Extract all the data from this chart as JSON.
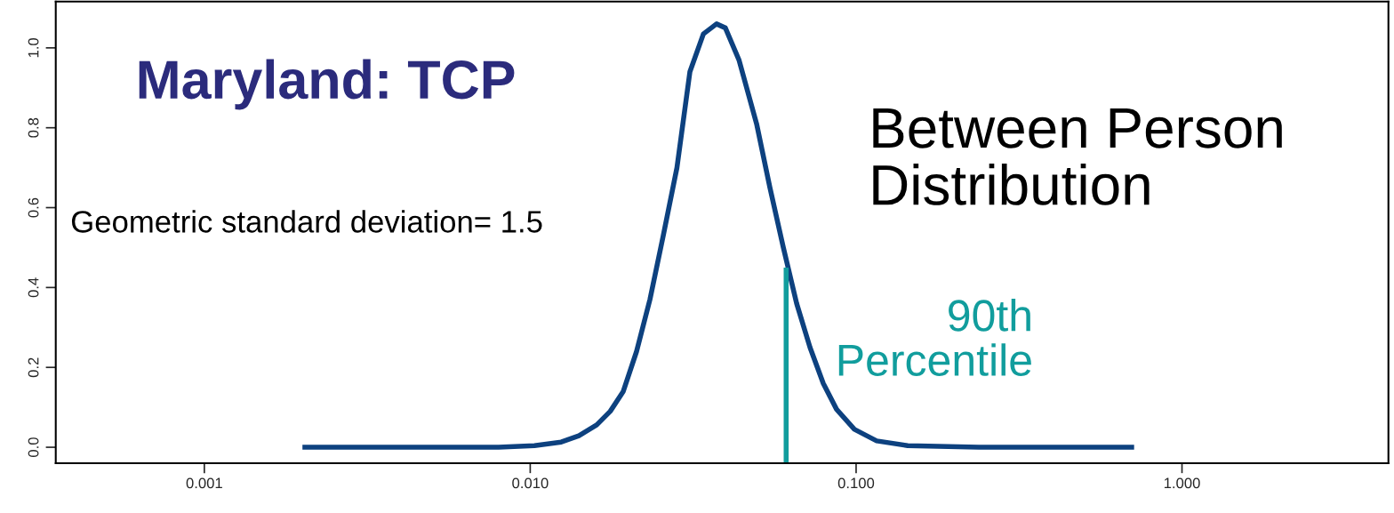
{
  "chart_data": {
    "type": "line",
    "title": "Maryland: TCP",
    "log": "x",
    "xlim": [
      0.00035,
      4.3
    ],
    "ylim": [
      -0.04,
      1.116
    ],
    "xticks": [
      {
        "value": 0.001,
        "label": "0.001"
      },
      {
        "value": 0.01,
        "label": "0.010"
      },
      {
        "value": 0.1,
        "label": "0.100"
      },
      {
        "value": 1,
        "label": "1.000"
      }
    ],
    "yticks": [
      {
        "value": 0,
        "label": "0.0"
      },
      {
        "value": 0.2,
        "label": "0.2"
      },
      {
        "value": 0.4,
        "label": "0.4"
      },
      {
        "value": 0.6,
        "label": "0.6"
      },
      {
        "value": 0.8,
        "label": "0.8"
      },
      {
        "value": 1,
        "label": "1.0"
      }
    ],
    "grid": false,
    "marker": "none",
    "line_style": "solid",
    "series": [
      {
        "color": "#0d417f",
        "x": [
          0.002,
          0.008,
          0.0103,
          0.01245,
          0.0141,
          0.016,
          0.0176,
          0.0193,
          0.0212,
          0.0233,
          0.0256,
          0.0282,
          0.0309,
          0.034,
          0.0373,
          0.0397,
          0.0437,
          0.0495,
          0.0544,
          0.0598,
          0.0657,
          0.0722,
          0.0793,
          0.0871,
          0.0988,
          0.1156,
          0.144,
          0.238,
          0.713
        ],
        "values": [
          0,
          0,
          0.004,
          0.013,
          0.029,
          0.056,
          0.09,
          0.14,
          0.24,
          0.37,
          0.53,
          0.7,
          0.94,
          1.035,
          1.06,
          1.05,
          0.97,
          0.81,
          0.65,
          0.5,
          0.36,
          0.25,
          0.16,
          0.095,
          0.045,
          0.016,
          0.004,
          0,
          0
        ]
      },
      {
        "color": "#119d9d",
        "x": [
          0.061,
          0.061
        ],
        "values": [
          -0.04,
          0.45
        ]
      }
    ],
    "annotations": [
      "Between Person\nDistribution",
      "Geometric standard deviation= 1.5",
      {
        "text": "90th\nPercentile",
        "x": 0.061,
        "y": 0.45
      }
    ]
  }
}
